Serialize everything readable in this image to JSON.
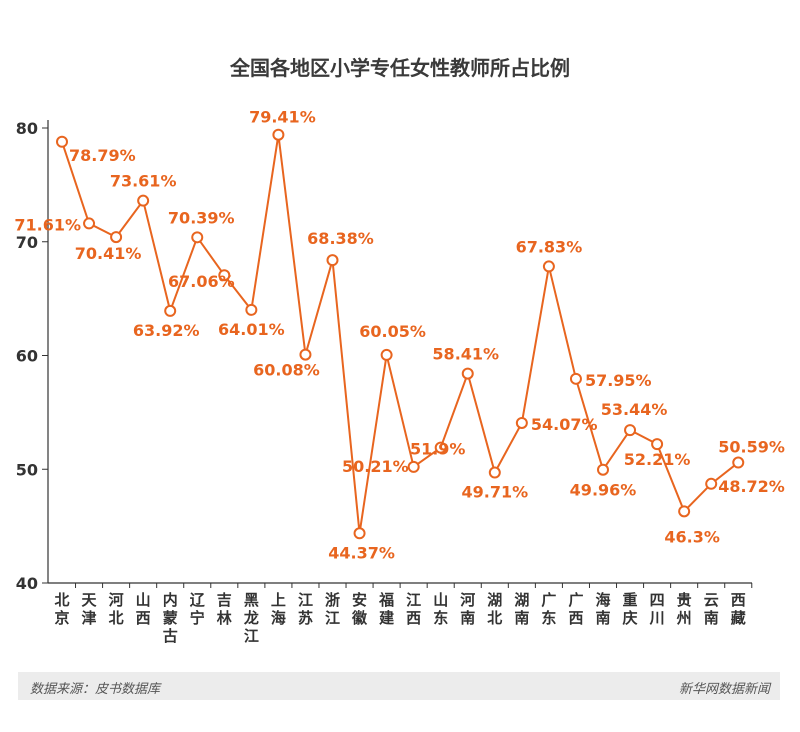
{
  "chart_data": {
    "type": "line",
    "title": "全国各地区小学专任女性教师所占比例",
    "categories": [
      "北京",
      "天津",
      "河北",
      "山西",
      "内蒙古",
      "辽宁",
      "吉林",
      "黑龙江",
      "上海",
      "江苏",
      "浙江",
      "安徽",
      "福建",
      "江西",
      "山东",
      "河南",
      "湖北",
      "湖南",
      "广东",
      "广西",
      "海南",
      "重庆",
      "四川",
      "贵州",
      "云南",
      "西藏"
    ],
    "series": [
      {
        "values": [
          78.79,
          71.61,
          70.41,
          73.61,
          63.92,
          70.39,
          67.06,
          64.01,
          79.41,
          60.08,
          68.38,
          44.37,
          60.05,
          50.21,
          51.9,
          58.41,
          49.71,
          54.07,
          67.83,
          57.95,
          49.96,
          53.44,
          52.21,
          46.3,
          48.72,
          50.59
        ]
      }
    ],
    "data_labels": [
      "78.79%",
      "71.61%",
      "70.41%",
      "73.61%",
      "63.92%",
      "70.39%",
      "67.06%",
      "64.01%",
      "79.41%",
      "60.08%",
      "68.38%",
      "44.37%",
      "60.05%",
      "50.21%",
      "51.9%",
      "58.41%",
      "49.71%",
      "54.07%",
      "67.83%",
      "57.95%",
      "49.96%",
      "53.44%",
      "52.21%",
      "46.3%",
      "48.72%",
      "50.59%"
    ],
    "ylim": [
      40,
      80
    ],
    "yticks": [
      "40",
      "50",
      "60",
      "70",
      "80"
    ],
    "grid": false,
    "color": "#e8651f"
  },
  "footer": {
    "source": "数据来源：皮书数据库",
    "brand": "新华网数据新闻"
  }
}
